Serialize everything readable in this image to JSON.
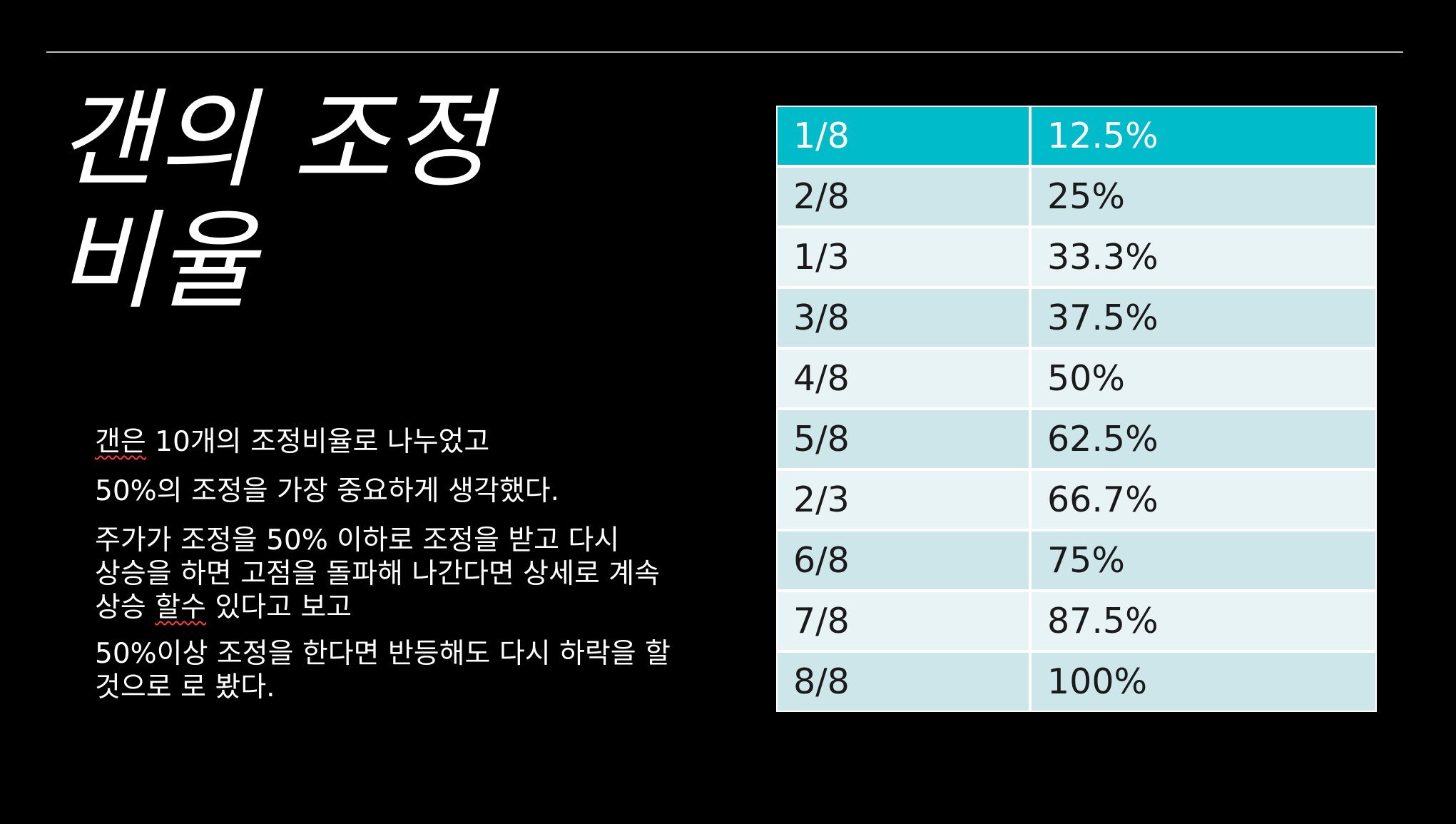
{
  "slide": {
    "title_line1": "갠의 조정",
    "title_line2": "비율",
    "paragraphs": [
      {
        "prefix": "",
        "squiggle": "갠은",
        "suffix": " 10개의 조정비율로 나누었고"
      },
      {
        "text": "50%의 조정을 가장 중요하게 생각했다."
      },
      {
        "line1": "주가가 조정을 50% 이하로 조정을 받고 다시",
        "line2": "상승을 하면 고점을 돌파해 나간다면 상세로 계속",
        "line3_prefix": "상승 ",
        "line3_squiggle": "할수",
        "line3_suffix": " 있다고 보고"
      },
      {
        "text": "50%이상 조정을 한다면 반등해도 다시 하락을 할 것으로 로 봤다."
      }
    ]
  },
  "table": {
    "rows": [
      {
        "fraction": "1/8",
        "percent": "12.5%"
      },
      {
        "fraction": "2/8",
        "percent": "25%"
      },
      {
        "fraction": "1/3",
        "percent": "33.3%"
      },
      {
        "fraction": "3/8",
        "percent": "37.5%"
      },
      {
        "fraction": "4/8",
        "percent": "50%"
      },
      {
        "fraction": "5/8",
        "percent": "62.5%"
      },
      {
        "fraction": "2/3",
        "percent": "66.7%"
      },
      {
        "fraction": "6/8",
        "percent": "75%"
      },
      {
        "fraction": "7/8",
        "percent": "87.5%"
      },
      {
        "fraction": "8/8",
        "percent": "100%"
      }
    ]
  },
  "colors": {
    "background": "#000000",
    "header": "#00bcca",
    "row_dark": "#cce6ea",
    "row_light": "#e7f3f5"
  }
}
